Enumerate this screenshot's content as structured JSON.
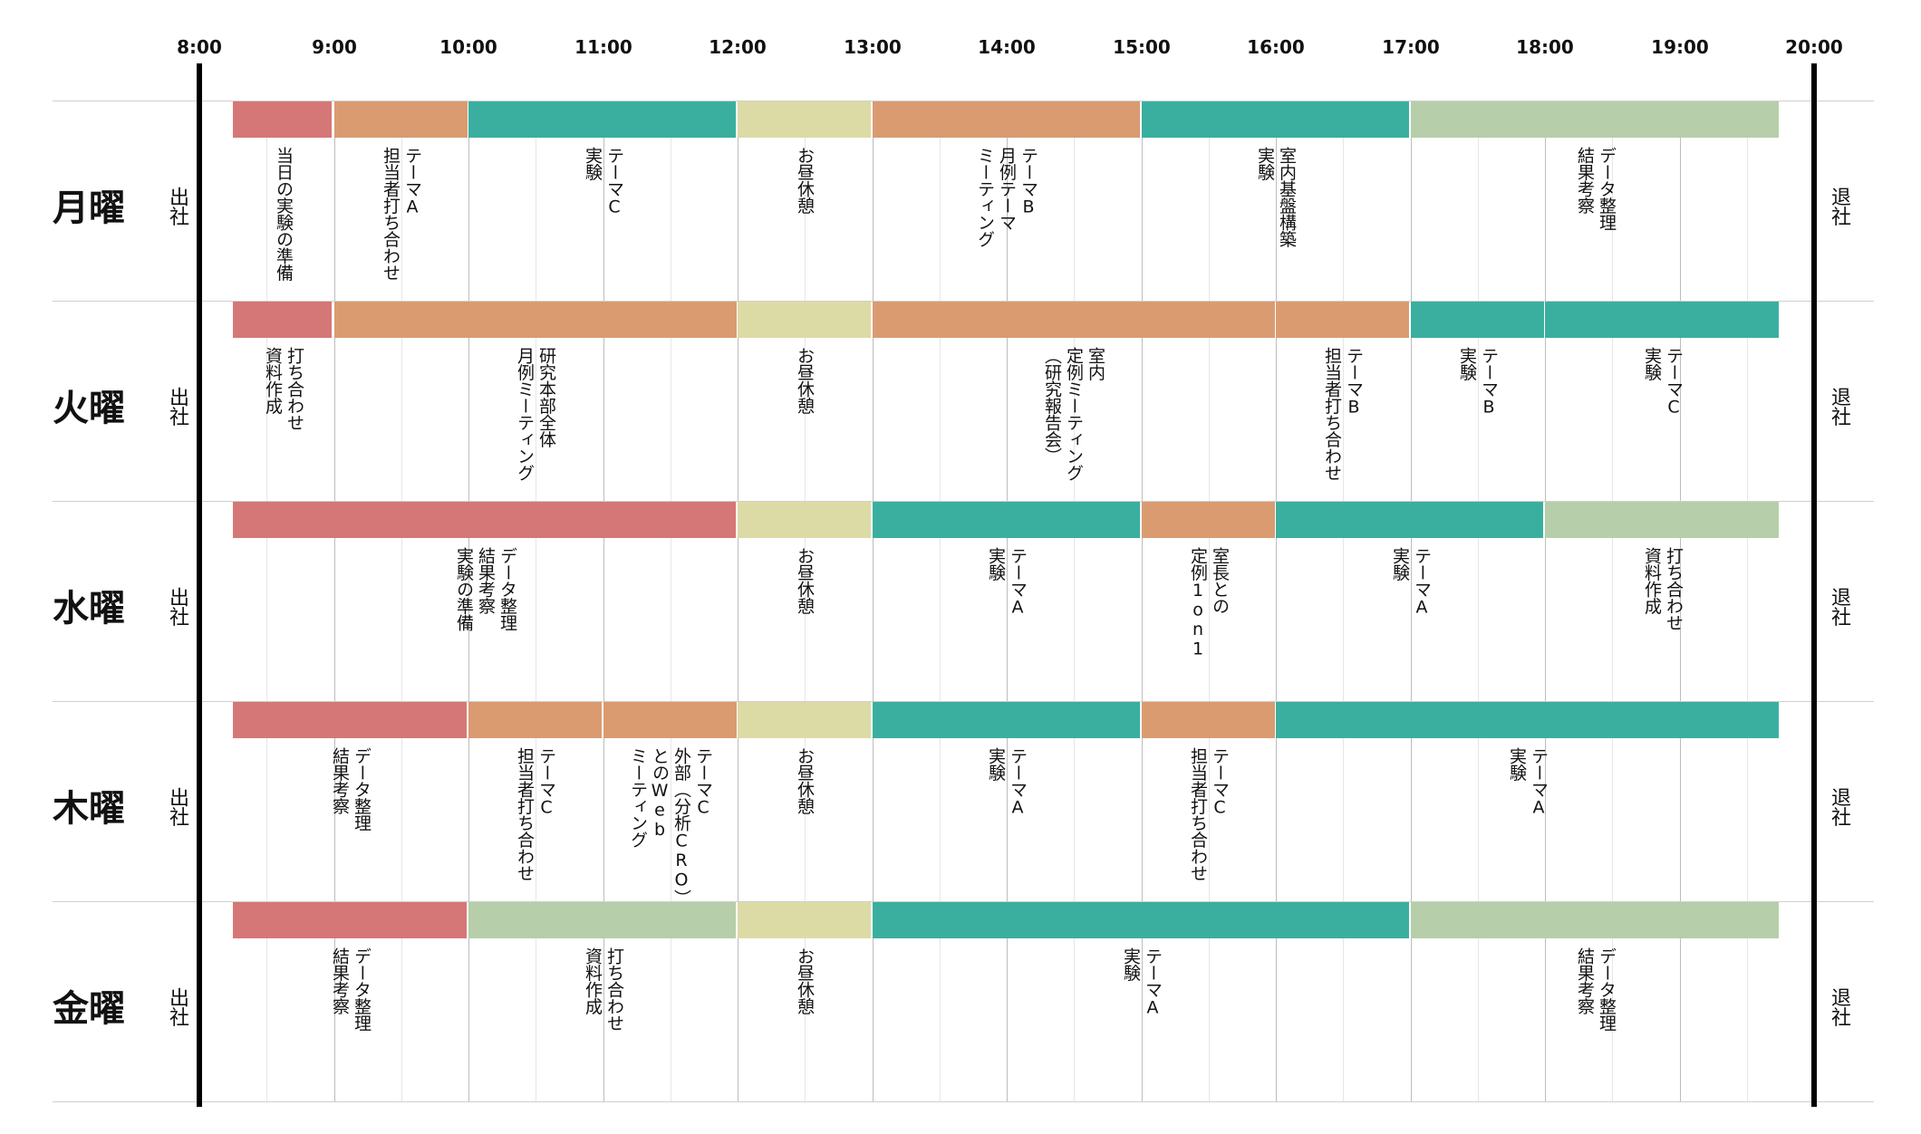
{
  "times": [
    "8:00",
    "9:00",
    "10:00",
    "11:00",
    "12:00",
    "13:00",
    "14:00",
    "15:00",
    "16:00",
    "17:00",
    "18:00",
    "19:00",
    "20:00"
  ],
  "arrive": "出社",
  "leave": "退社",
  "colors": {
    "red": "#d57776",
    "orange": "#da9b71",
    "teal": "#3aaf9f",
    "yellow": "#dcdba6",
    "green": "#b6ceaa"
  },
  "days": [
    {
      "name": "月曜",
      "blocks": [
        {
          "start": 8.25,
          "end": 9,
          "color": "red",
          "label": "当日の実験の準備"
        },
        {
          "start": 9,
          "end": 10,
          "color": "orange",
          "label": "テーマA\n担当者打ち合わせ"
        },
        {
          "start": 10,
          "end": 12,
          "color": "teal",
          "label": "テーマC\n実験"
        },
        {
          "start": 12,
          "end": 13,
          "color": "yellow",
          "label": "お昼休憩"
        },
        {
          "start": 13,
          "end": 15,
          "color": "orange",
          "label": "テーマB\n月例テーマ\nミーティング"
        },
        {
          "start": 15,
          "end": 17,
          "color": "teal",
          "label": "室内基盤構築\n実験"
        },
        {
          "start": 17,
          "end": 19.75,
          "color": "green",
          "label": "データ整理\n結果考察"
        }
      ]
    },
    {
      "name": "火曜",
      "blocks": [
        {
          "start": 8.25,
          "end": 9,
          "color": "red",
          "label": "打ち合わせ\n資料作成"
        },
        {
          "start": 9,
          "end": 12,
          "color": "orange",
          "label": "研究本部全体\n月例ミーティング"
        },
        {
          "start": 12,
          "end": 13,
          "color": "yellow",
          "label": "お昼休憩"
        },
        {
          "start": 13,
          "end": 16,
          "color": "orange",
          "label": "室内\n定例ミーティング\n（研究報告会）"
        },
        {
          "start": 16,
          "end": 17,
          "color": "orange",
          "label": "テーマB\n担当者打ち合わせ"
        },
        {
          "start": 17,
          "end": 18,
          "color": "teal",
          "label": "テーマB\n実験"
        },
        {
          "start": 18,
          "end": 19.75,
          "color": "teal",
          "label": "テーマC\n実験"
        }
      ]
    },
    {
      "name": "水曜",
      "blocks": [
        {
          "start": 8.25,
          "end": 12,
          "color": "red",
          "label": "データ整理\n結果考察\n実験の準備"
        },
        {
          "start": 12,
          "end": 13,
          "color": "yellow",
          "label": "お昼休憩"
        },
        {
          "start": 13,
          "end": 15,
          "color": "teal",
          "label": "テーマA\n実験"
        },
        {
          "start": 15,
          "end": 16,
          "color": "orange",
          "label": "室長との\n定例1on1"
        },
        {
          "start": 16,
          "end": 18,
          "color": "teal",
          "label": "テーマA\n実験"
        },
        {
          "start": 18,
          "end": 19.75,
          "color": "green",
          "label": "打ち合わせ\n資料作成"
        }
      ]
    },
    {
      "name": "木曜",
      "blocks": [
        {
          "start": 8.25,
          "end": 10,
          "color": "red",
          "label": "データ整理\n結果考察"
        },
        {
          "start": 10,
          "end": 11,
          "color": "orange",
          "label": "テーマC\n担当者打ち合わせ"
        },
        {
          "start": 11,
          "end": 12,
          "color": "orange",
          "label": "テーマC\n外部（分析CRO）\nとのWeb\nミーティング"
        },
        {
          "start": 12,
          "end": 13,
          "color": "yellow",
          "label": "お昼休憩"
        },
        {
          "start": 13,
          "end": 15,
          "color": "teal",
          "label": "テーマA\n実験"
        },
        {
          "start": 15,
          "end": 16,
          "color": "orange",
          "label": "テーマC\n担当者打ち合わせ"
        },
        {
          "start": 16,
          "end": 19.75,
          "color": "teal",
          "label": "テーマA\n実験"
        }
      ]
    },
    {
      "name": "金曜",
      "blocks": [
        {
          "start": 8.25,
          "end": 10,
          "color": "red",
          "label": "データ整理\n結果考察"
        },
        {
          "start": 10,
          "end": 12,
          "color": "green",
          "label": "打ち合わせ\n資料作成"
        },
        {
          "start": 12,
          "end": 13,
          "color": "yellow",
          "label": "お昼休憩"
        },
        {
          "start": 13,
          "end": 17,
          "color": "teal",
          "label": "テーマA\n実験"
        },
        {
          "start": 17,
          "end": 19.75,
          "color": "green",
          "label": "データ整理\n結果考察"
        }
      ]
    }
  ]
}
